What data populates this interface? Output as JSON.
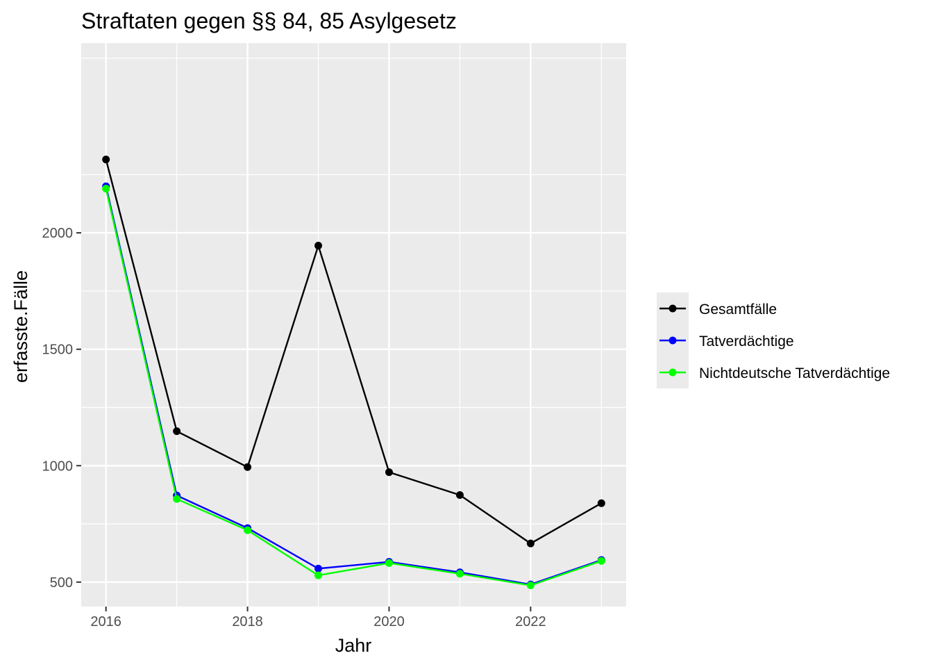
{
  "chart_data": {
    "type": "line",
    "title": "Straftaten gegen §§ 84, 85 Asylgesetz",
    "xlabel": "Jahr",
    "ylabel": "erfasste.Fälle",
    "x": [
      2016,
      2017,
      2018,
      2019,
      2020,
      2021,
      2022,
      2023
    ],
    "xlim": [
      2015.65,
      2023.35
    ],
    "ylim": [
      395,
      2815
    ],
    "x_ticks": [
      "2016",
      "2018",
      "2020",
      "2022"
    ],
    "y_ticks": [
      "500",
      "1000",
      "1500",
      "2000"
    ],
    "grid": true,
    "legend_position": "right",
    "series": [
      {
        "name": "Gesamtfälle",
        "color": "#000000",
        "values": [
          2315,
          1148,
          994,
          1945,
          972,
          874,
          666,
          839
        ]
      },
      {
        "name": "Tatverdächtige",
        "color": "#0000ff",
        "values": [
          2200,
          872,
          732,
          558,
          587,
          542,
          490,
          595
        ]
      },
      {
        "name": "Nichtdeutsche Tatverdächtige",
        "color": "#00ff00",
        "values": [
          2190,
          857,
          723,
          529,
          582,
          536,
          486,
          591
        ]
      }
    ]
  }
}
